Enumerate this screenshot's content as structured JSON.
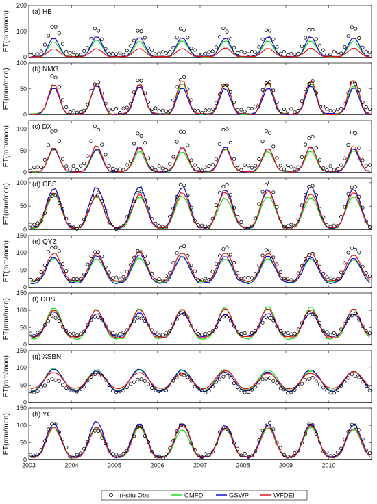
{
  "chart_data": {
    "type": "line",
    "ylabel": "ET(mm/mon)",
    "x_years": [
      "2003",
      "2004",
      "2005",
      "2006",
      "2007",
      "2008",
      "2009",
      "2010"
    ],
    "legend": {
      "placement": "bottom",
      "entries": [
        {
          "name": "In-situ Obs",
          "color": "#000000",
          "marker": "circle"
        },
        {
          "name": "CMFD",
          "color": "#22dd22",
          "marker": "line"
        },
        {
          "name": "GSWP",
          "color": "#1010d0",
          "marker": "line"
        },
        {
          "name": "WFDEI",
          "color": "#e01818",
          "marker": "line"
        }
      ]
    },
    "colors": {
      "obs": "#000000",
      "cmfd": "#22dd22",
      "gswp": "#1010d0",
      "wfdei": "#e01818"
    },
    "panels": [
      {
        "label": "(a) HB",
        "ylim": [
          0,
          200
        ],
        "yticks": [
          0,
          100,
          200
        ],
        "peaks": {
          "cmfd": 65,
          "gswp": 78,
          "wfdei": 35
        },
        "base": {
          "cmfd": 2,
          "gswp": 2,
          "wfdei": 2
        },
        "obs_peak": 115,
        "obs_base": 15
      },
      {
        "label": "(b) NMG",
        "ylim": [
          0,
          100
        ],
        "yticks": [
          0,
          50,
          100
        ],
        "peaks": {
          "cmfd": 60,
          "gswp": 55,
          "wfdei": 65
        },
        "base": {
          "cmfd": 1,
          "gswp": 1,
          "wfdei": 1
        },
        "obs_peak": 70,
        "obs_base": 8
      },
      {
        "label": "(c) DX",
        "ylim": [
          0,
          120
        ],
        "yticks": [
          0,
          50,
          100
        ],
        "peaks": {
          "cmfd": 52,
          "gswp": 58,
          "wfdei": 60
        },
        "base": {
          "cmfd": 2,
          "gswp": 2,
          "wfdei": 2
        },
        "obs_peak": 95,
        "obs_base": 10
      },
      {
        "label": "(d) CBS",
        "ylim": [
          0,
          110
        ],
        "yticks": [
          0,
          50,
          100
        ],
        "peaks": {
          "cmfd": 72,
          "gswp": 88,
          "wfdei": 78
        },
        "base": {
          "cmfd": 4,
          "gswp": 4,
          "wfdei": 4
        },
        "obs_peak": 88,
        "obs_base": 6
      },
      {
        "label": "(e) QYZ",
        "ylim": [
          0,
          150
        ],
        "yticks": [
          0,
          50,
          100,
          150
        ],
        "peaks": {
          "cmfd": 85,
          "gswp": 90,
          "wfdei": 100
        },
        "base": {
          "cmfd": 15,
          "gswp": 12,
          "wfdei": 18
        },
        "obs_peak": 108,
        "obs_base": 22
      },
      {
        "label": "(f) DHS",
        "ylim": [
          0,
          150
        ],
        "yticks": [
          0,
          50,
          100,
          150
        ],
        "peaks": {
          "cmfd": 108,
          "gswp": 92,
          "wfdei": 100
        },
        "base": {
          "cmfd": 18,
          "gswp": 25,
          "wfdei": 22
        },
        "obs_peak": 85,
        "obs_base": 30
      },
      {
        "label": "(g) XSBN",
        "ylim": [
          0,
          150
        ],
        "yticks": [
          0,
          50,
          100,
          150
        ],
        "peaks": {
          "cmfd": 95,
          "gswp": 92,
          "wfdei": 90
        },
        "base": {
          "cmfd": 35,
          "gswp": 32,
          "wfdei": 40
        },
        "obs_peak": 75,
        "obs_base": 30
      },
      {
        "label": "(h) YC",
        "ylim": [
          0,
          150
        ],
        "yticks": [
          0,
          50,
          100,
          150
        ],
        "peaks": {
          "cmfd": 92,
          "gswp": 108,
          "wfdei": 98
        },
        "base": {
          "cmfd": 8,
          "gswp": 8,
          "wfdei": 8
        },
        "obs_peak": 100,
        "obs_base": 12
      }
    ]
  }
}
